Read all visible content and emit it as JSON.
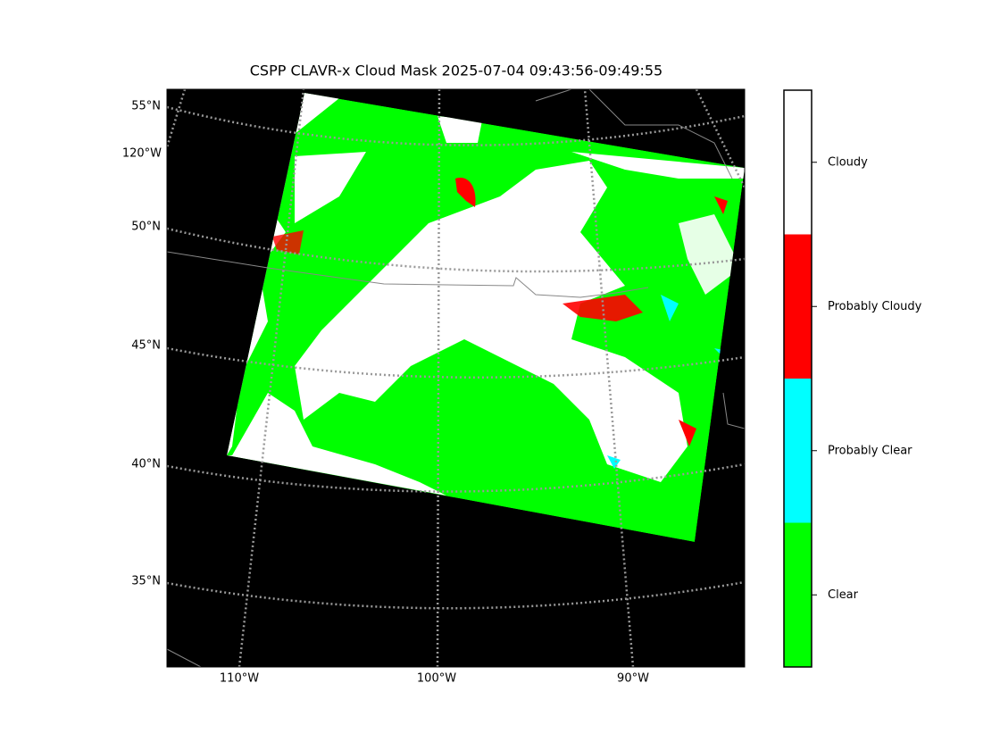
{
  "title": "CSPP CLAVR-x Cloud Mask 2025-07-04 09:43:56-09:49:55",
  "latitude_labels": [
    "55°N",
    "50°N",
    "45°N",
    "40°N",
    "35°N"
  ],
  "longitude_labels": [
    "120°W",
    "110°W",
    "100°W",
    "90°W"
  ],
  "legend": {
    "items": [
      {
        "label": "Clear",
        "color": "#00ff00"
      },
      {
        "label": "Probably Clear",
        "color": "#00ffff"
      },
      {
        "label": "Probably Cloudy",
        "color": "#ff0000"
      },
      {
        "label": "Cloudy",
        "color": "#ffffff"
      }
    ]
  }
}
